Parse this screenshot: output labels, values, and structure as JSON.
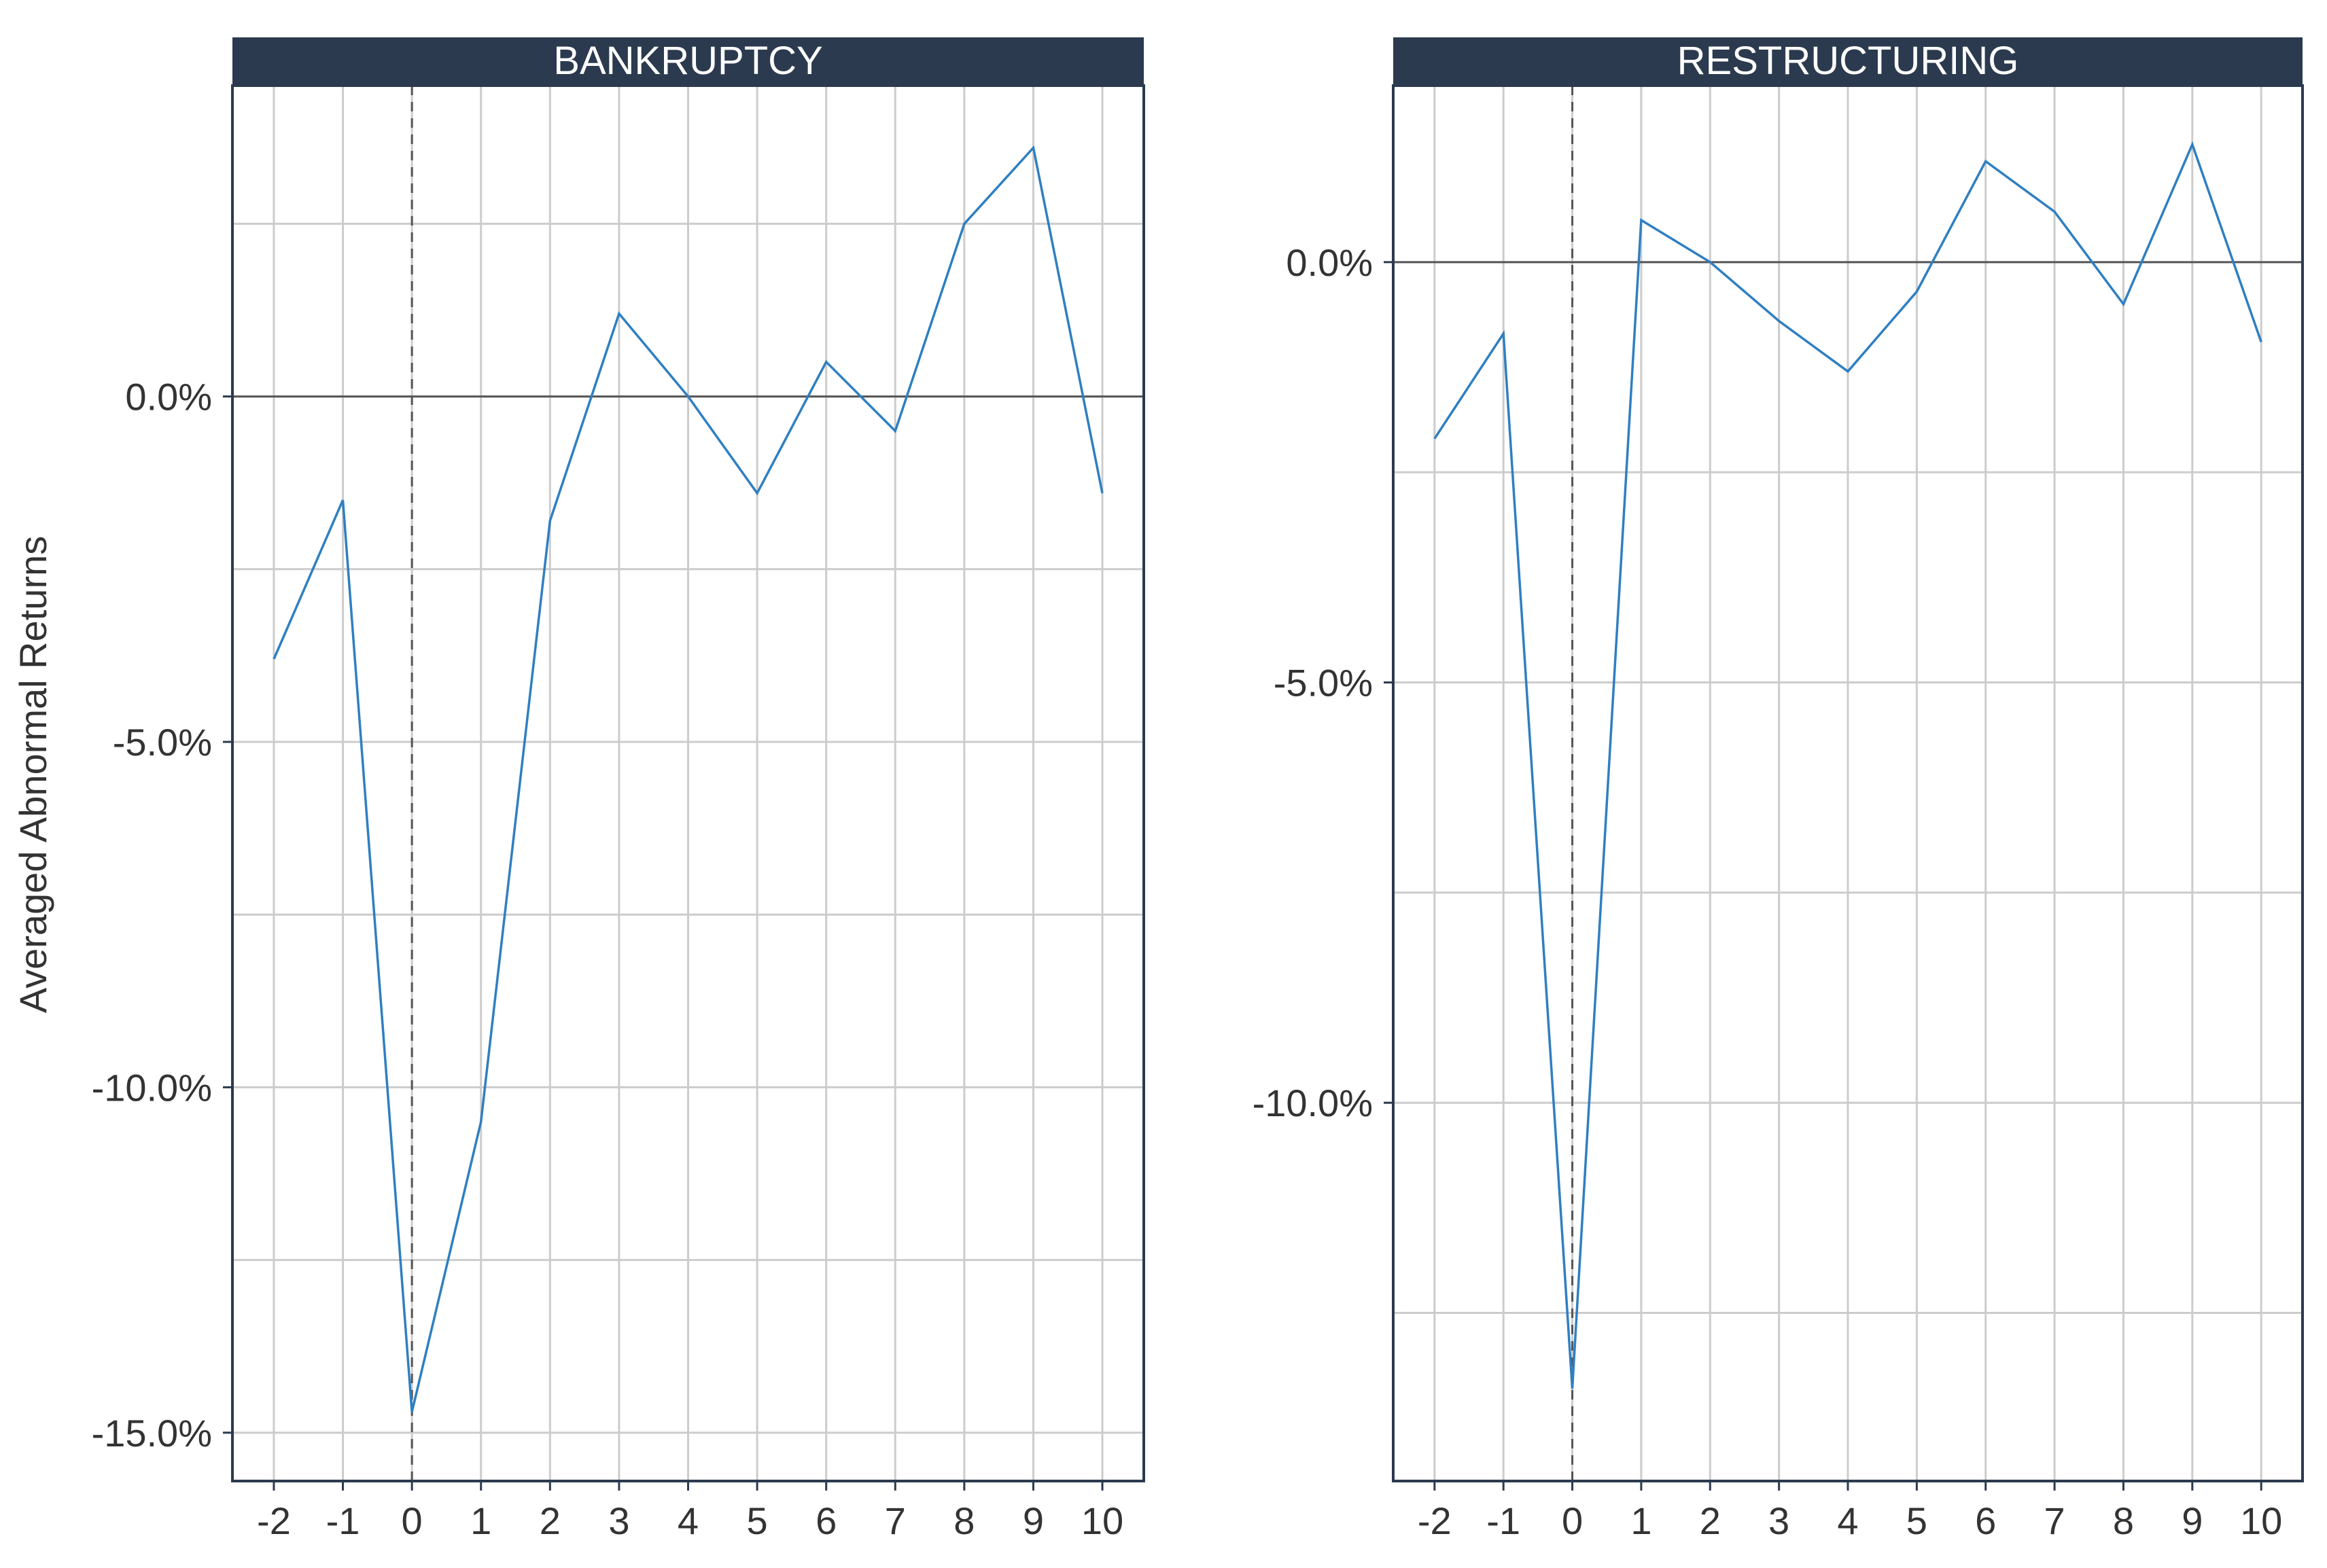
{
  "ylabel": "Averaged Abnormal Returns",
  "colors": {
    "line": "#2f7fc1",
    "strip": "#2b3a4e",
    "grid": "#cccccc",
    "frame": "#2b3a4e",
    "zero": "#555555",
    "event": "#555555",
    "text": "#333333"
  },
  "chart_data": [
    {
      "type": "line",
      "title": "BANKRUPTCY",
      "x": [
        -2,
        -1,
        0,
        1,
        2,
        3,
        4,
        5,
        6,
        7,
        8,
        9,
        10
      ],
      "series": [
        {
          "values": [
            -3.8,
            -1.5,
            -14.7,
            -10.5,
            -1.8,
            1.2,
            0.0,
            -1.4,
            0.5,
            -0.5,
            2.5,
            3.6,
            -1.4
          ]
        }
      ],
      "xticks": [
        "-2",
        "-1",
        "0",
        "1",
        "2",
        "3",
        "4",
        "5",
        "6",
        "7",
        "8",
        "9",
        "10"
      ],
      "yticks": [
        0.0,
        -5.0,
        -10.0,
        -15.0
      ],
      "ytick_labels": [
        "0.0%",
        "-5.0%",
        "-10.0%",
        "-15.0%"
      ],
      "ylim": [
        -15.7,
        4.5
      ],
      "xlim": [
        -2.6,
        10.6
      ],
      "event_x": 0,
      "grid": true
    },
    {
      "type": "line",
      "title": "RESTRUCTURING",
      "x": [
        -2,
        -1,
        0,
        1,
        2,
        3,
        4,
        5,
        6,
        7,
        8,
        9,
        10
      ],
      "series": [
        {
          "values": [
            -2.1,
            -0.85,
            -13.4,
            0.5,
            0.0,
            -0.7,
            -1.3,
            -0.35,
            1.2,
            0.6,
            -0.5,
            1.4,
            -0.95
          ]
        }
      ],
      "xticks": [
        "-2",
        "-1",
        "0",
        "1",
        "2",
        "3",
        "4",
        "5",
        "6",
        "7",
        "8",
        "9",
        "10"
      ],
      "yticks": [
        0.0,
        -5.0,
        -10.0
      ],
      "ytick_labels": [
        "0.0%",
        "-5.0%",
        "-10.0%"
      ],
      "ylim": [
        -14.5,
        2.1
      ],
      "xlim": [
        -2.6,
        10.6
      ],
      "event_x": 0,
      "grid": true
    }
  ]
}
